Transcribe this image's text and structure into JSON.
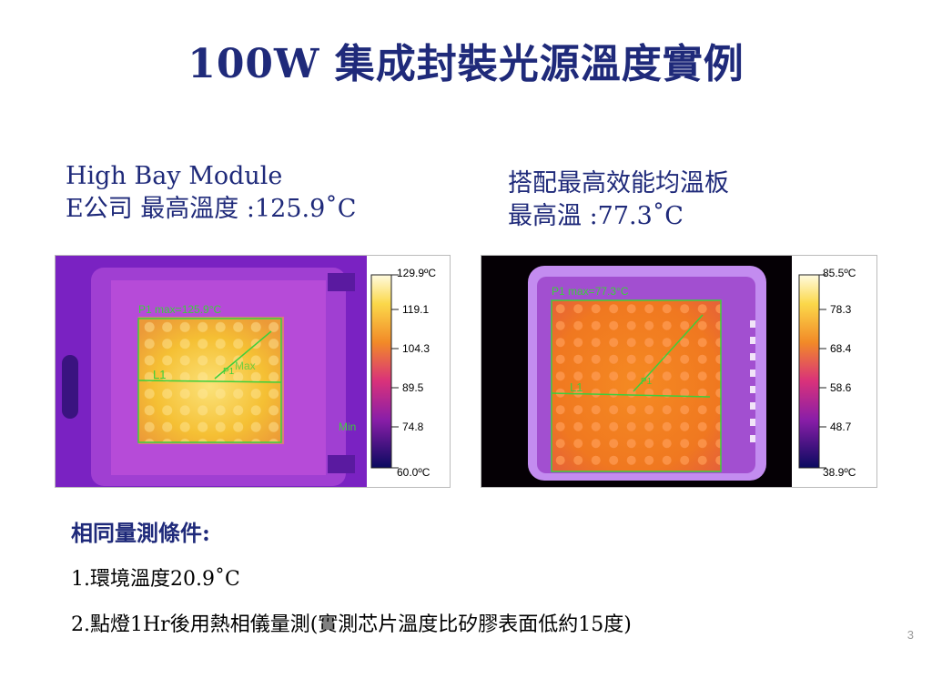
{
  "title": "100W 集成封裝光源溫度實例",
  "left": {
    "caption_line1": "High Bay Module",
    "caption_line2": "E公司 最高溫度 :125.9˚C",
    "overlay_label": "P1 max=125.9°C",
    "line_label": "L1",
    "point_label": "P1",
    "max_label": "Max",
    "min_label": "Min",
    "scale_ticks": [
      "129.9ºC",
      "119.1",
      "104.3",
      "89.5",
      "74.8",
      "60.0ºC"
    ],
    "colors": {
      "background": "#7a22c2",
      "hot": "#f5c034",
      "border": "#b64bd8"
    }
  },
  "right": {
    "caption_line1": "搭配最高效能均溫板",
    "caption_line2": "最高溫 :77.3˚C",
    "overlay_label": "P1 max=77.3°C",
    "line_label": "L1",
    "point_label": "P1",
    "scale_ticks": [
      "85.5ºC",
      "78.3",
      "68.4",
      "58.6",
      "48.7",
      "38.9ºC"
    ],
    "colors": {
      "background": "#050005",
      "hot": "#f07820",
      "border": "#c38cf0"
    }
  },
  "conditions": {
    "heading": "相同量測條件:",
    "item1": "1.環境溫度20.9˚C",
    "item2": "2.點燈1Hr後用熱相儀量測(實測芯片溫度比矽膠表面低約15度)"
  },
  "page_number": "3"
}
